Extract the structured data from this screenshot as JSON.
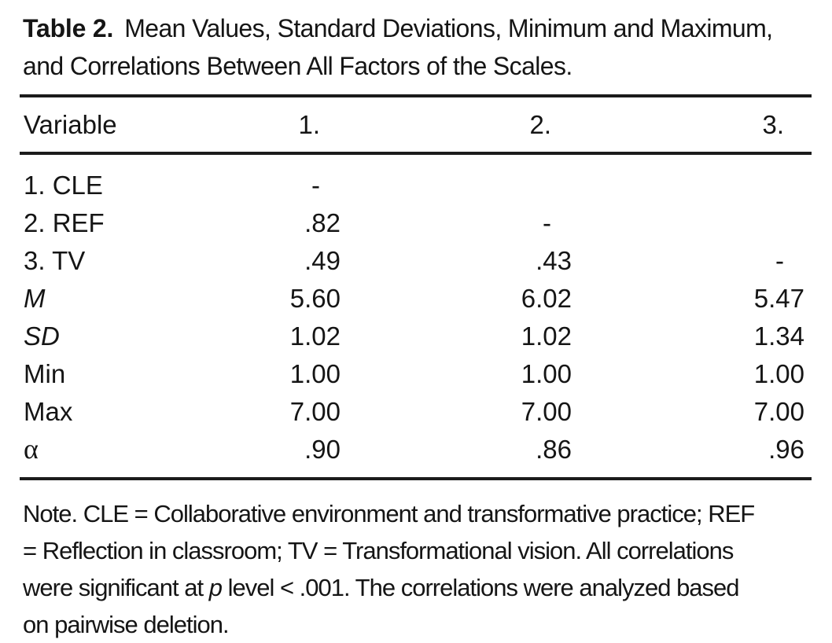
{
  "title": {
    "label": "Table 2.",
    "text": "Mean Values, Standard Deviations, Minimum and Maximum, and Correlations Between All Factors of the Scales."
  },
  "table": {
    "columns": [
      "Variable",
      "1.",
      "2.",
      "3."
    ],
    "rows": [
      {
        "label": "1. CLE",
        "values": [
          "-",
          "",
          ""
        ]
      },
      {
        "label": "2. REF",
        "values": [
          ".82",
          "-",
          ""
        ]
      },
      {
        "label": "3. TV",
        "values": [
          ".49",
          ".43",
          "-"
        ]
      },
      {
        "label": "M",
        "values": [
          "5.60",
          "6.02",
          "5.47"
        ]
      },
      {
        "label": "SD",
        "values": [
          "1.02",
          "1.02",
          "1.34"
        ]
      },
      {
        "label": "Min",
        "values": [
          "1.00",
          "1.00",
          "1.00"
        ]
      },
      {
        "label": "Max",
        "values": [
          "7.00",
          "7.00",
          "7.00"
        ]
      },
      {
        "label": "α",
        "values": [
          ".90",
          ".86",
          ".96"
        ]
      }
    ]
  },
  "note": {
    "line1": "Note. CLE = Collaborative environment and transformative practice; REF",
    "line2": "= Reflection in classroom; TV = Transformational vision. All correlations",
    "line3_before_p": "were significant at ",
    "line3_p": "p",
    "line3_after_p": " level < .001. The correlations were analyzed based",
    "line4": "on pairwise deletion."
  },
  "colors": {
    "text": "#151515",
    "rule": "#1b1b1b",
    "background": "#ffffff"
  }
}
